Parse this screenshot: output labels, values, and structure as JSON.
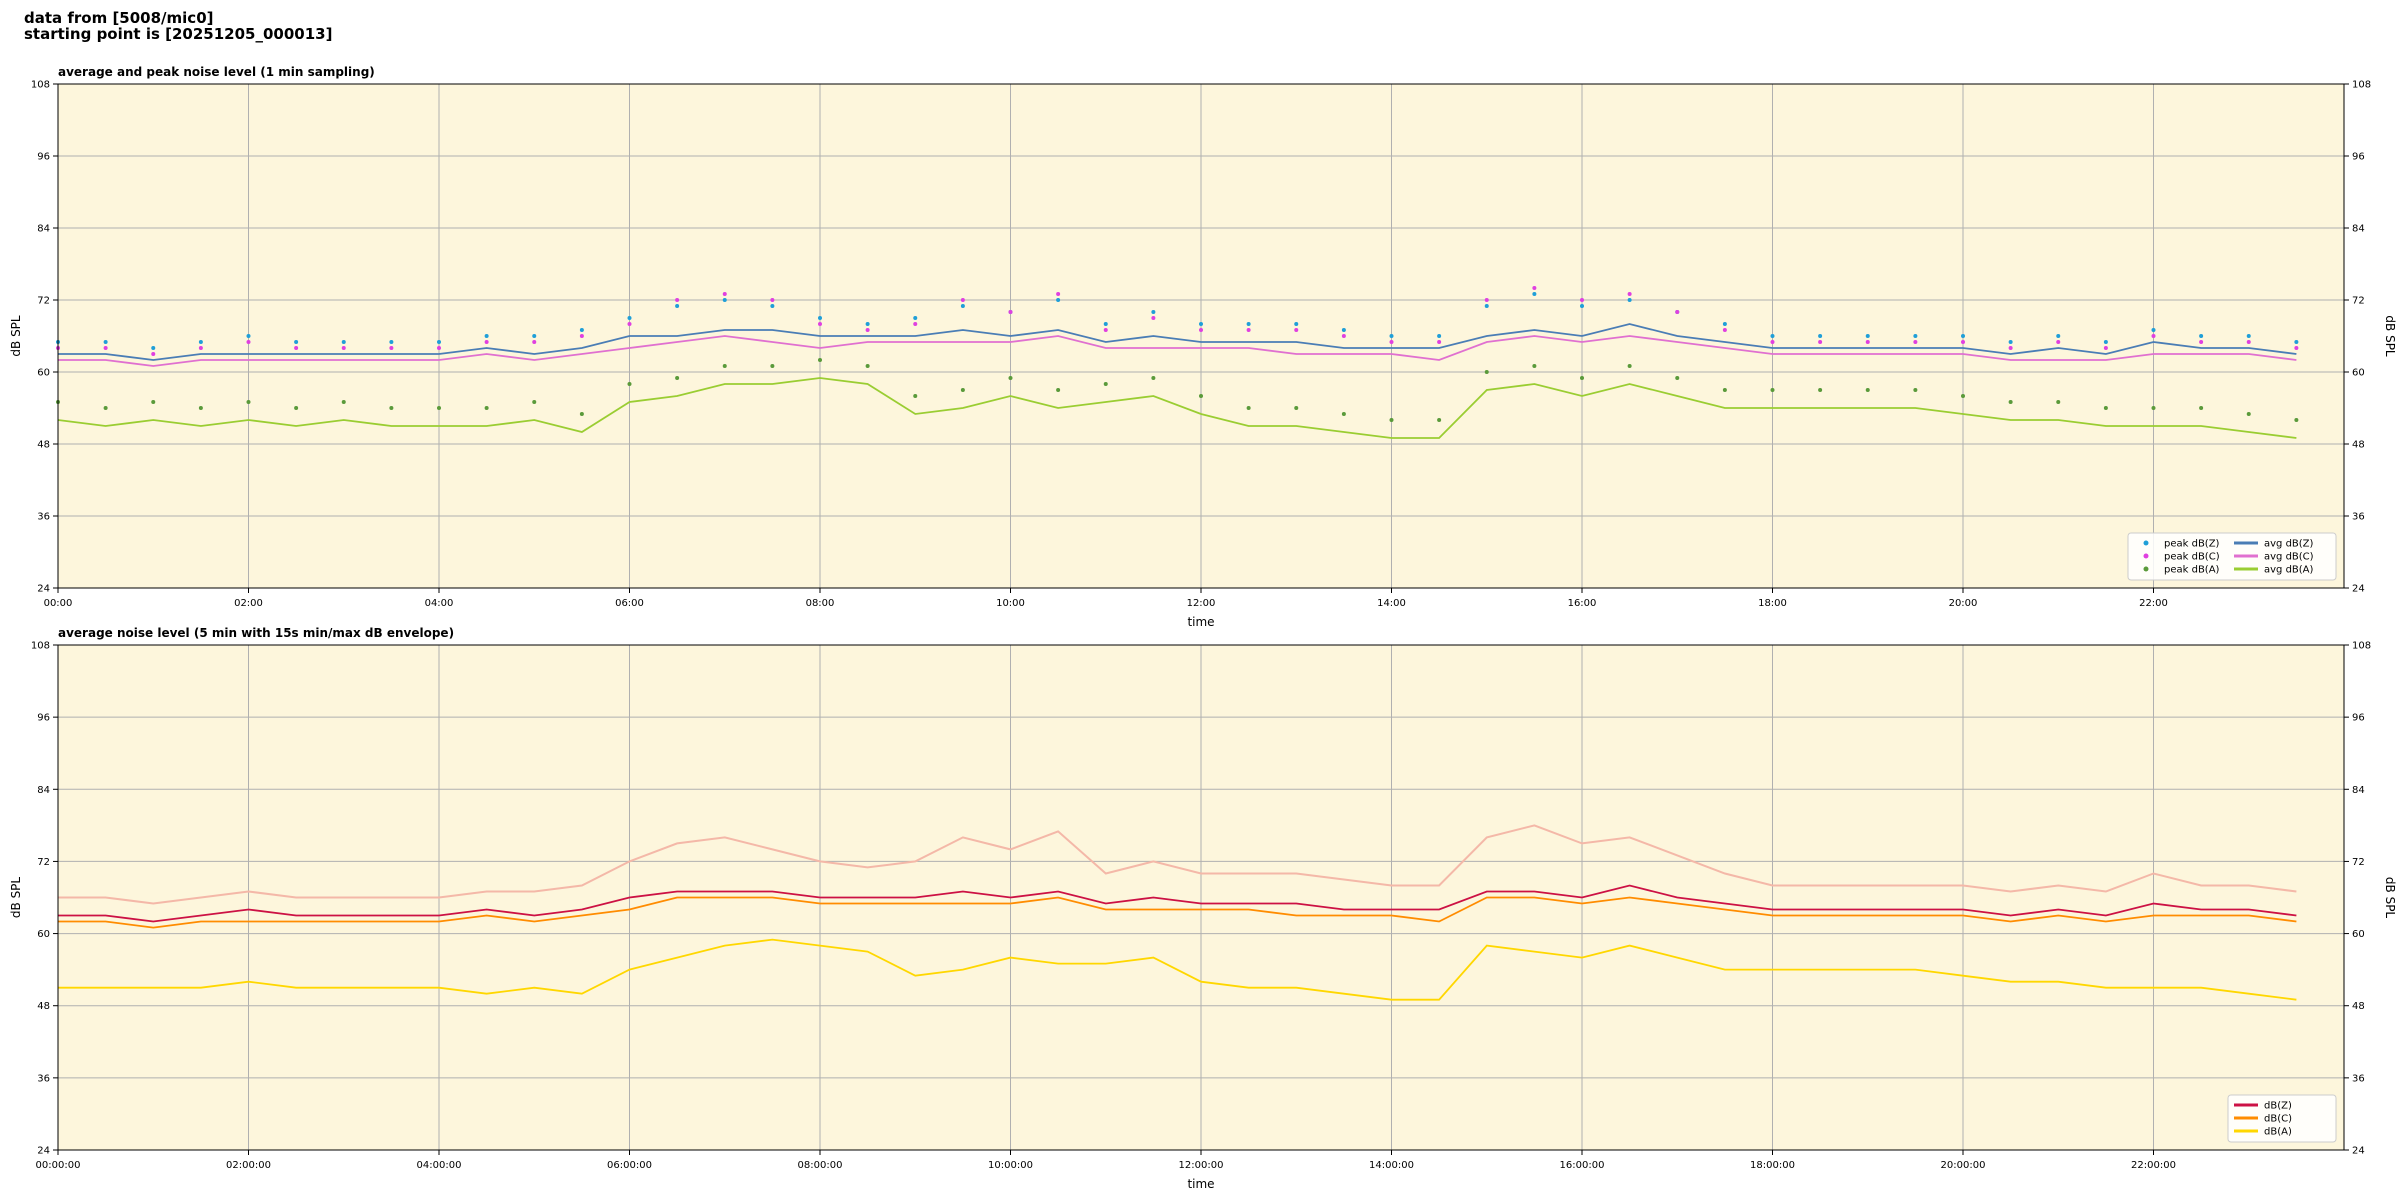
{
  "header": {
    "line1": "data from [5008/mic0]",
    "line2": "starting point is [20251205_000013]"
  },
  "chart_data": [
    {
      "type": "line",
      "title": "average and peak noise level (1 min sampling)",
      "x_label": "time",
      "y_label": "dB SPL",
      "xlim": [
        0,
        24
      ],
      "ylim": [
        24,
        108
      ],
      "yticks": [
        24,
        36,
        48,
        60,
        72,
        84,
        96,
        108
      ],
      "xticks": [
        {
          "value": 0,
          "label": "00:00"
        },
        {
          "value": 2,
          "label": "02:00"
        },
        {
          "value": 4,
          "label": "04:00"
        },
        {
          "value": 6,
          "label": "06:00"
        },
        {
          "value": 8,
          "label": "08:00"
        },
        {
          "value": 10,
          "label": "10:00"
        },
        {
          "value": 12,
          "label": "12:00"
        },
        {
          "value": 14,
          "label": "14:00"
        },
        {
          "value": 16,
          "label": "16:00"
        },
        {
          "value": 18,
          "label": "18:00"
        },
        {
          "value": 20,
          "label": "20:00"
        },
        {
          "value": 22,
          "label": "22:00"
        }
      ],
      "grid": true,
      "legend": "lower right",
      "background": "#fdf6dc",
      "x": [
        0,
        0.5,
        1,
        1.5,
        2,
        2.5,
        3,
        3.5,
        4,
        4.5,
        5,
        5.5,
        6,
        6.5,
        7,
        7.5,
        8,
        8.5,
        9,
        9.5,
        10,
        10.5,
        11,
        11.5,
        12,
        12.5,
        13,
        13.5,
        14,
        14.5,
        15,
        15.5,
        16,
        16.5,
        17,
        17.5,
        18,
        18.5,
        19,
        19.5,
        20,
        20.5,
        21,
        21.5,
        22,
        22.5,
        23,
        23.5
      ],
      "series": [
        {
          "name": "peak dB(Z)",
          "type": "scatter",
          "color": "#1f9fd8",
          "values": [
            65,
            65,
            64,
            65,
            66,
            65,
            65,
            65,
            65,
            66,
            66,
            67,
            69,
            71,
            72,
            71,
            69,
            68,
            69,
            71,
            70,
            72,
            68,
            70,
            68,
            68,
            68,
            67,
            66,
            66,
            71,
            73,
            71,
            72,
            70,
            68,
            66,
            66,
            66,
            66,
            66,
            65,
            66,
            65,
            67,
            66,
            66,
            65
          ]
        },
        {
          "name": "peak dB(C)",
          "type": "scatter",
          "color": "#e040e0",
          "values": [
            64,
            64,
            63,
            64,
            65,
            64,
            64,
            64,
            64,
            65,
            65,
            66,
            68,
            72,
            73,
            72,
            68,
            67,
            68,
            72,
            70,
            73,
            67,
            69,
            67,
            67,
            67,
            66,
            65,
            65,
            72,
            74,
            72,
            73,
            70,
            67,
            65,
            65,
            65,
            65,
            65,
            64,
            65,
            64,
            66,
            65,
            65,
            64
          ]
        },
        {
          "name": "peak dB(A)",
          "type": "scatter",
          "color": "#5a9a3a",
          "values": [
            55,
            54,
            55,
            54,
            55,
            54,
            55,
            54,
            54,
            54,
            55,
            53,
            58,
            59,
            61,
            61,
            62,
            61,
            56,
            57,
            59,
            57,
            58,
            59,
            56,
            54,
            54,
            53,
            52,
            52,
            60,
            61,
            59,
            61,
            59,
            57,
            57,
            57,
            57,
            57,
            56,
            55,
            55,
            54,
            54,
            54,
            53,
            52
          ]
        },
        {
          "name": "avg dB(Z)",
          "type": "line",
          "color": "#4a7db5",
          "values": [
            63,
            63,
            62,
            63,
            63,
            63,
            63,
            63,
            63,
            64,
            63,
            64,
            66,
            66,
            67,
            67,
            66,
            66,
            66,
            67,
            66,
            67,
            65,
            66,
            65,
            65,
            65,
            64,
            64,
            64,
            66,
            67,
            66,
            68,
            66,
            65,
            64,
            64,
            64,
            64,
            64,
            63,
            64,
            63,
            65,
            64,
            64,
            63
          ]
        },
        {
          "name": "avg dB(C)",
          "type": "line",
          "color": "#e070d0",
          "values": [
            62,
            62,
            61,
            62,
            62,
            62,
            62,
            62,
            62,
            63,
            62,
            63,
            64,
            65,
            66,
            65,
            64,
            65,
            65,
            65,
            65,
            66,
            64,
            64,
            64,
            64,
            63,
            63,
            63,
            62,
            65,
            66,
            65,
            66,
            65,
            64,
            63,
            63,
            63,
            63,
            63,
            62,
            62,
            62,
            63,
            63,
            63,
            62
          ]
        },
        {
          "name": "avg dB(A)",
          "type": "line",
          "color": "#9acd32",
          "values": [
            52,
            51,
            52,
            51,
            52,
            51,
            52,
            51,
            51,
            51,
            52,
            50,
            55,
            56,
            58,
            58,
            59,
            58,
            53,
            54,
            56,
            54,
            55,
            56,
            53,
            51,
            51,
            50,
            49,
            49,
            57,
            58,
            56,
            58,
            56,
            54,
            54,
            54,
            54,
            54,
            53,
            52,
            52,
            51,
            51,
            51,
            50,
            49
          ]
        }
      ]
    },
    {
      "type": "line",
      "title": "average noise level (5 min with 15s min/max dB envelope)",
      "x_label": "time",
      "y_label": "dB SPL",
      "xlim": [
        0,
        24
      ],
      "ylim": [
        24,
        108
      ],
      "yticks": [
        24,
        36,
        48,
        60,
        72,
        84,
        96,
        108
      ],
      "xticks": [
        {
          "value": 0,
          "label": "00:00:00"
        },
        {
          "value": 2,
          "label": "02:00:00"
        },
        {
          "value": 4,
          "label": "04:00:00"
        },
        {
          "value": 6,
          "label": "06:00:00"
        },
        {
          "value": 8,
          "label": "08:00:00"
        },
        {
          "value": 10,
          "label": "10:00:00"
        },
        {
          "value": 12,
          "label": "12:00:00"
        },
        {
          "value": 14,
          "label": "14:00:00"
        },
        {
          "value": 16,
          "label": "16:00:00"
        },
        {
          "value": 18,
          "label": "18:00:00"
        },
        {
          "value": 20,
          "label": "20:00:00"
        },
        {
          "value": 22,
          "label": "22:00:00"
        }
      ],
      "grid": true,
      "legend": "lower right",
      "background": "#fdf6dc",
      "x": [
        0,
        0.5,
        1,
        1.5,
        2,
        2.5,
        3,
        3.5,
        4,
        4.5,
        5,
        5.5,
        6,
        6.5,
        7,
        7.5,
        8,
        8.5,
        9,
        9.5,
        10,
        10.5,
        11,
        11.5,
        12,
        12.5,
        13,
        13.5,
        14,
        14.5,
        15,
        15.5,
        16,
        16.5,
        17,
        17.5,
        18,
        18.5,
        19,
        19.5,
        20,
        20.5,
        21,
        21.5,
        22,
        22.5,
        23,
        23.5
      ],
      "envelope": {
        "color": "#f4b8a8",
        "values": [
          66,
          66,
          65,
          66,
          67,
          66,
          66,
          66,
          66,
          67,
          67,
          68,
          72,
          75,
          76,
          74,
          72,
          71,
          72,
          76,
          74,
          77,
          70,
          72,
          70,
          70,
          70,
          69,
          68,
          68,
          76,
          78,
          75,
          76,
          73,
          70,
          68,
          68,
          68,
          68,
          68,
          67,
          68,
          67,
          70,
          68,
          68,
          67
        ]
      },
      "series": [
        {
          "name": "dB(Z)",
          "type": "line",
          "color": "#cc1144",
          "values": [
            63,
            63,
            62,
            63,
            64,
            63,
            63,
            63,
            63,
            64,
            63,
            64,
            66,
            67,
            67,
            67,
            66,
            66,
            66,
            67,
            66,
            67,
            65,
            66,
            65,
            65,
            65,
            64,
            64,
            64,
            67,
            67,
            66,
            68,
            66,
            65,
            64,
            64,
            64,
            64,
            64,
            63,
            64,
            63,
            65,
            64,
            64,
            63
          ]
        },
        {
          "name": "dB(C)",
          "type": "line",
          "color": "#ff8c00",
          "values": [
            62,
            62,
            61,
            62,
            62,
            62,
            62,
            62,
            62,
            63,
            62,
            63,
            64,
            66,
            66,
            66,
            65,
            65,
            65,
            65,
            65,
            66,
            64,
            64,
            64,
            64,
            63,
            63,
            63,
            62,
            66,
            66,
            65,
            66,
            65,
            64,
            63,
            63,
            63,
            63,
            63,
            62,
            63,
            62,
            63,
            63,
            63,
            62
          ]
        },
        {
          "name": "dB(A)",
          "type": "line",
          "color": "#ffd700",
          "values": [
            51,
            51,
            51,
            51,
            52,
            51,
            51,
            51,
            51,
            50,
            51,
            50,
            54,
            56,
            58,
            59,
            58,
            57,
            53,
            54,
            56,
            55,
            55,
            56,
            52,
            51,
            51,
            50,
            49,
            49,
            58,
            57,
            56,
            58,
            56,
            54,
            54,
            54,
            54,
            54,
            53,
            52,
            52,
            51,
            51,
            51,
            50,
            49
          ]
        }
      ]
    }
  ]
}
